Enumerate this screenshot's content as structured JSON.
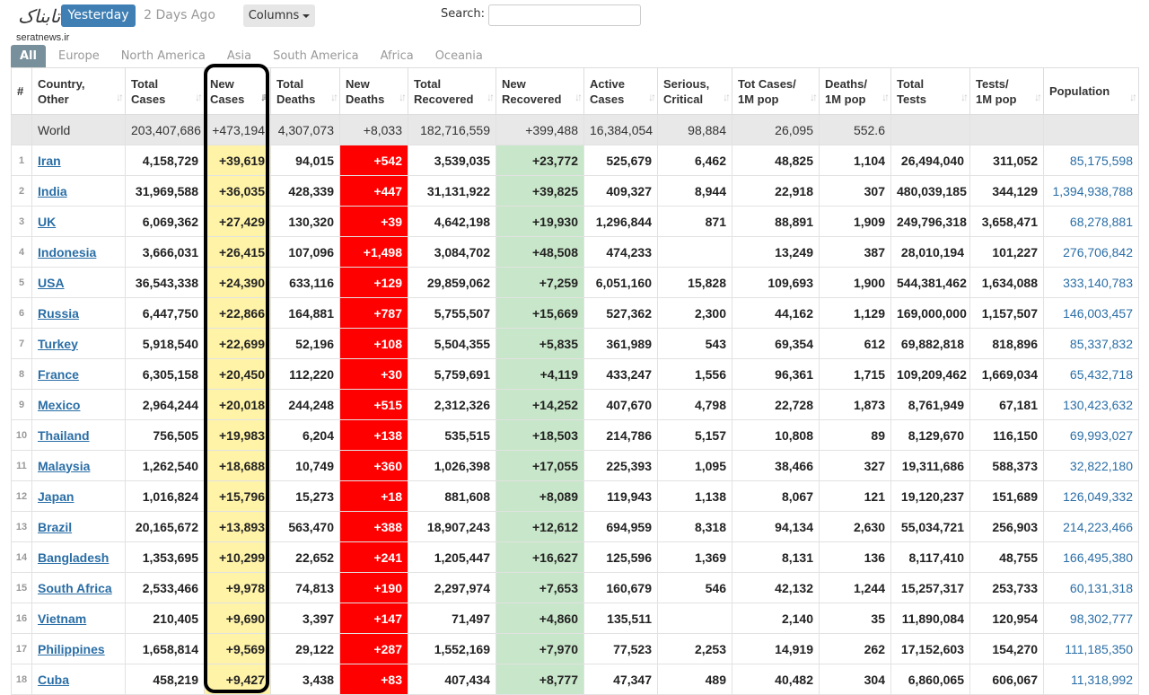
{
  "logo": {
    "script_text": "تابناک",
    "site_text": "seratnews.ir"
  },
  "controls": {
    "yesterday": "Yesterday",
    "two_days_ago": "2 Days Ago",
    "columns": "Columns",
    "search_label": "Search:",
    "search_value": ""
  },
  "tabs": [
    "All",
    "Europe",
    "North America",
    "Asia",
    "South America",
    "Africa",
    "Oceania"
  ],
  "headers": {
    "num": "#",
    "country": [
      "Country,",
      "Other"
    ],
    "total_cases": [
      "Total",
      "Cases"
    ],
    "new_cases": [
      "New",
      "Cases"
    ],
    "total_deaths": [
      "Total",
      "Deaths"
    ],
    "new_deaths": [
      "New",
      "Deaths"
    ],
    "total_recovered": [
      "Total",
      "Recovered"
    ],
    "new_recovered": [
      "New",
      "Recovered"
    ],
    "active_cases": [
      "Active",
      "Cases"
    ],
    "serious": [
      "Serious,",
      "Critical"
    ],
    "tot_cases_pop": [
      "Tot Cases/",
      "1M pop"
    ],
    "deaths_pop": [
      "Deaths/",
      "1M pop"
    ],
    "total_tests": [
      "Total",
      "Tests"
    ],
    "tests_pop": [
      "Tests/",
      "1M pop"
    ],
    "population": [
      "Population"
    ]
  },
  "world": {
    "country": "World",
    "total_cases": "203,407,686",
    "new_cases": "+473,194",
    "total_deaths": "4,307,073",
    "new_deaths": "+8,033",
    "total_recovered": "182,716,559",
    "new_recovered": "+399,488",
    "active_cases": "16,384,054",
    "serious": "98,884",
    "tot_cases_pop": "26,095",
    "deaths_pop": "552.6",
    "total_tests": "",
    "tests_pop": "",
    "population": ""
  },
  "rows": [
    {
      "num": "1",
      "country": "Iran",
      "total_cases": "4,158,729",
      "new_cases": "+39,619",
      "total_deaths": "94,015",
      "new_deaths": "+542",
      "total_recovered": "3,539,035",
      "new_recovered": "+23,772",
      "active_cases": "525,679",
      "serious": "6,462",
      "tot_cases_pop": "48,825",
      "deaths_pop": "1,104",
      "total_tests": "26,494,040",
      "tests_pop": "311,052",
      "population": "85,175,598"
    },
    {
      "num": "2",
      "country": "India",
      "total_cases": "31,969,588",
      "new_cases": "+36,035",
      "total_deaths": "428,339",
      "new_deaths": "+447",
      "total_recovered": "31,131,922",
      "new_recovered": "+39,825",
      "active_cases": "409,327",
      "serious": "8,944",
      "tot_cases_pop": "22,918",
      "deaths_pop": "307",
      "total_tests": "480,039,185",
      "tests_pop": "344,129",
      "population": "1,394,938,788"
    },
    {
      "num": "3",
      "country": "UK",
      "total_cases": "6,069,362",
      "new_cases": "+27,429",
      "total_deaths": "130,320",
      "new_deaths": "+39",
      "total_recovered": "4,642,198",
      "new_recovered": "+19,930",
      "active_cases": "1,296,844",
      "serious": "871",
      "tot_cases_pop": "88,891",
      "deaths_pop": "1,909",
      "total_tests": "249,796,318",
      "tests_pop": "3,658,471",
      "population": "68,278,881"
    },
    {
      "num": "4",
      "country": "Indonesia",
      "total_cases": "3,666,031",
      "new_cases": "+26,415",
      "total_deaths": "107,096",
      "new_deaths": "+1,498",
      "total_recovered": "3,084,702",
      "new_recovered": "+48,508",
      "active_cases": "474,233",
      "serious": "",
      "tot_cases_pop": "13,249",
      "deaths_pop": "387",
      "total_tests": "28,010,194",
      "tests_pop": "101,227",
      "population": "276,706,842"
    },
    {
      "num": "5",
      "country": "USA",
      "total_cases": "36,543,338",
      "new_cases": "+24,390",
      "total_deaths": "633,116",
      "new_deaths": "+129",
      "total_recovered": "29,859,062",
      "new_recovered": "+7,259",
      "active_cases": "6,051,160",
      "serious": "15,828",
      "tot_cases_pop": "109,693",
      "deaths_pop": "1,900",
      "total_tests": "544,381,462",
      "tests_pop": "1,634,088",
      "population": "333,140,783"
    },
    {
      "num": "6",
      "country": "Russia",
      "total_cases": "6,447,750",
      "new_cases": "+22,866",
      "total_deaths": "164,881",
      "new_deaths": "+787",
      "total_recovered": "5,755,507",
      "new_recovered": "+15,669",
      "active_cases": "527,362",
      "serious": "2,300",
      "tot_cases_pop": "44,162",
      "deaths_pop": "1,129",
      "total_tests": "169,000,000",
      "tests_pop": "1,157,507",
      "population": "146,003,457"
    },
    {
      "num": "7",
      "country": "Turkey",
      "total_cases": "5,918,540",
      "new_cases": "+22,699",
      "total_deaths": "52,196",
      "new_deaths": "+108",
      "total_recovered": "5,504,355",
      "new_recovered": "+5,835",
      "active_cases": "361,989",
      "serious": "543",
      "tot_cases_pop": "69,354",
      "deaths_pop": "612",
      "total_tests": "69,882,818",
      "tests_pop": "818,896",
      "population": "85,337,832"
    },
    {
      "num": "8",
      "country": "France",
      "total_cases": "6,305,158",
      "new_cases": "+20,450",
      "total_deaths": "112,220",
      "new_deaths": "+30",
      "total_recovered": "5,759,691",
      "new_recovered": "+4,119",
      "active_cases": "433,247",
      "serious": "1,556",
      "tot_cases_pop": "96,361",
      "deaths_pop": "1,715",
      "total_tests": "109,209,462",
      "tests_pop": "1,669,034",
      "population": "65,432,718"
    },
    {
      "num": "9",
      "country": "Mexico",
      "total_cases": "2,964,244",
      "new_cases": "+20,018",
      "total_deaths": "244,248",
      "new_deaths": "+515",
      "total_recovered": "2,312,326",
      "new_recovered": "+14,252",
      "active_cases": "407,670",
      "serious": "4,798",
      "tot_cases_pop": "22,728",
      "deaths_pop": "1,873",
      "total_tests": "8,761,949",
      "tests_pop": "67,181",
      "population": "130,423,632"
    },
    {
      "num": "10",
      "country": "Thailand",
      "total_cases": "756,505",
      "new_cases": "+19,983",
      "total_deaths": "6,204",
      "new_deaths": "+138",
      "total_recovered": "535,515",
      "new_recovered": "+18,503",
      "active_cases": "214,786",
      "serious": "5,157",
      "tot_cases_pop": "10,808",
      "deaths_pop": "89",
      "total_tests": "8,129,670",
      "tests_pop": "116,150",
      "population": "69,993,027"
    },
    {
      "num": "11",
      "country": "Malaysia",
      "total_cases": "1,262,540",
      "new_cases": "+18,688",
      "total_deaths": "10,749",
      "new_deaths": "+360",
      "total_recovered": "1,026,398",
      "new_recovered": "+17,055",
      "active_cases": "225,393",
      "serious": "1,095",
      "tot_cases_pop": "38,466",
      "deaths_pop": "327",
      "total_tests": "19,311,686",
      "tests_pop": "588,373",
      "population": "32,822,180"
    },
    {
      "num": "12",
      "country": "Japan",
      "total_cases": "1,016,824",
      "new_cases": "+15,796",
      "total_deaths": "15,273",
      "new_deaths": "+18",
      "total_recovered": "881,608",
      "new_recovered": "+8,089",
      "active_cases": "119,943",
      "serious": "1,138",
      "tot_cases_pop": "8,067",
      "deaths_pop": "121",
      "total_tests": "19,120,237",
      "tests_pop": "151,689",
      "population": "126,049,332"
    },
    {
      "num": "13",
      "country": "Brazil",
      "total_cases": "20,165,672",
      "new_cases": "+13,893",
      "total_deaths": "563,470",
      "new_deaths": "+388",
      "total_recovered": "18,907,243",
      "new_recovered": "+12,612",
      "active_cases": "694,959",
      "serious": "8,318",
      "tot_cases_pop": "94,134",
      "deaths_pop": "2,630",
      "total_tests": "55,034,721",
      "tests_pop": "256,903",
      "population": "214,223,466"
    },
    {
      "num": "14",
      "country": "Bangladesh",
      "total_cases": "1,353,695",
      "new_cases": "+10,299",
      "total_deaths": "22,652",
      "new_deaths": "+241",
      "total_recovered": "1,205,447",
      "new_recovered": "+16,627",
      "active_cases": "125,596",
      "serious": "1,369",
      "tot_cases_pop": "8,131",
      "deaths_pop": "136",
      "total_tests": "8,117,410",
      "tests_pop": "48,755",
      "population": "166,495,380"
    },
    {
      "num": "15",
      "country": "South Africa",
      "total_cases": "2,533,466",
      "new_cases": "+9,978",
      "total_deaths": "74,813",
      "new_deaths": "+190",
      "total_recovered": "2,297,974",
      "new_recovered": "+7,653",
      "active_cases": "160,679",
      "serious": "546",
      "tot_cases_pop": "42,132",
      "deaths_pop": "1,244",
      "total_tests": "15,257,317",
      "tests_pop": "253,733",
      "population": "60,131,318"
    },
    {
      "num": "16",
      "country": "Vietnam",
      "total_cases": "210,405",
      "new_cases": "+9,690",
      "total_deaths": "3,397",
      "new_deaths": "+147",
      "total_recovered": "71,497",
      "new_recovered": "+4,860",
      "active_cases": "135,511",
      "serious": "",
      "tot_cases_pop": "2,140",
      "deaths_pop": "35",
      "total_tests": "11,890,084",
      "tests_pop": "120,954",
      "population": "98,302,777"
    },
    {
      "num": "17",
      "country": "Philippines",
      "total_cases": "1,658,814",
      "new_cases": "+9,569",
      "total_deaths": "29,122",
      "new_deaths": "+287",
      "total_recovered": "1,552,169",
      "new_recovered": "+7,970",
      "active_cases": "77,523",
      "serious": "2,253",
      "tot_cases_pop": "14,919",
      "deaths_pop": "262",
      "total_tests": "17,152,603",
      "tests_pop": "154,270",
      "population": "111,185,350"
    },
    {
      "num": "18",
      "country": "Cuba",
      "total_cases": "458,219",
      "new_cases": "+9,427",
      "total_deaths": "3,438",
      "new_deaths": "+83",
      "total_recovered": "407,434",
      "new_recovered": "+8,777",
      "active_cases": "47,347",
      "serious": "489",
      "tot_cases_pop": "40,482",
      "deaths_pop": "304",
      "total_tests": "6,860,065",
      "tests_pop": "606,067",
      "population": "11,318,992"
    }
  ],
  "colors": {
    "yesterday_button": "#3f7fb4",
    "new_cases_bg": "#fff3a8",
    "new_deaths_bg": "#ff0000",
    "new_recovered_bg": "#c8e6c9",
    "world_row_bg": "#e8e8e8",
    "link": "#2a6ea6",
    "highlight_border": "#000000"
  }
}
